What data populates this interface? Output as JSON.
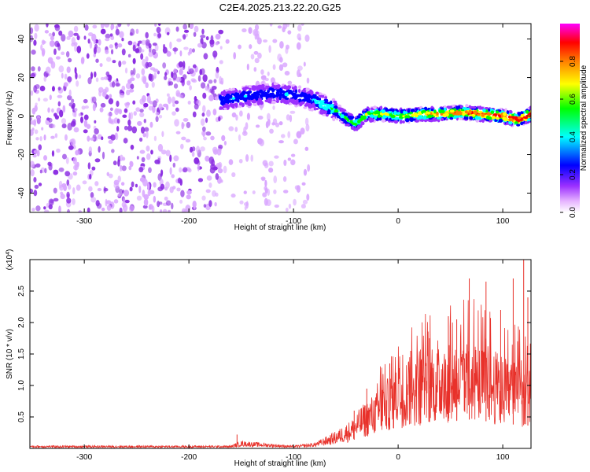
{
  "figure": {
    "title": "C2E4.2025.213.22.20.G25"
  },
  "chart_data": [
    {
      "type": "heatmap",
      "title": "C2E4.2025.213.22.20.G25",
      "xlabel": "Height of straight line (km)",
      "ylabel": "Frequency (Hz)",
      "xlim": [
        -352,
        127
      ],
      "ylim": [
        -50,
        48
      ],
      "x_ticks": [
        -300,
        -200,
        -100,
        0,
        100
      ],
      "y_ticks": [
        -40,
        -20,
        0,
        20,
        40
      ],
      "x_tick_labels": [
        "-300",
        "-200",
        "-100",
        "0",
        "100"
      ],
      "y_tick_labels": [
        "-40",
        "-20",
        "0",
        "20",
        "40"
      ],
      "colorbar": {
        "label": "Normalized spectral amplitude",
        "range": [
          0,
          1
        ],
        "ticks": [
          0.0,
          0.2,
          0.4,
          0.6,
          0.8
        ],
        "tick_labels": [
          "0.0",
          "0.2",
          "0.4",
          "0.6",
          "0.8"
        ],
        "colors": [
          "#ffffff",
          "#e6b3ff",
          "#9b30ff",
          "#0000ff",
          "#00ffff",
          "#00ff00",
          "#ffff00",
          "#ff8000",
          "#ff0000",
          "#ff00ff"
        ]
      },
      "ridge": {
        "x": [
          -170,
          -150,
          -120,
          -100,
          -80,
          -60,
          -48,
          -40,
          -30,
          -10,
          0,
          20,
          40,
          60,
          80,
          100,
          115,
          127
        ],
        "y": [
          8,
          10,
          12,
          11,
          8,
          3,
          -2,
          -4,
          1,
          1,
          0,
          1,
          1,
          2,
          1,
          0,
          -2,
          1
        ]
      },
      "grid": false,
      "legend": "none"
    },
    {
      "type": "line",
      "xlabel": "Height of straight line (km)",
      "ylabel": "SNR (10 * v/v)",
      "y_multiplier_label": "(x10",
      "y_multiplier_exp": "4",
      "y_multiplier_close": ")",
      "xlim": [
        -352,
        127
      ],
      "ylim": [
        0,
        3.0
      ],
      "x_ticks": [
        -300,
        -200,
        -100,
        0,
        100
      ],
      "y_ticks": [
        0.5,
        1.0,
        1.5,
        2.0,
        2.5
      ],
      "x_tick_labels": [
        "-300",
        "-200",
        "-100",
        "0",
        "100"
      ],
      "y_tick_labels": [
        "0.5",
        "1.0",
        "1.5",
        "2.0",
        "2.5"
      ],
      "series": [
        {
          "color": "#e8312a",
          "envelope_x": [
            -352,
            -160,
            -150,
            -100,
            -80,
            -60,
            -45,
            -35,
            -20,
            -10,
            0,
            15,
            30,
            50,
            70,
            90,
            110,
            127
          ],
          "envelope_y": [
            0.03,
            0.03,
            0.08,
            0.03,
            0.06,
            0.18,
            0.3,
            0.45,
            0.62,
            0.75,
            0.9,
            1.0,
            1.05,
            1.1,
            1.15,
            1.05,
            0.95,
            0.9
          ],
          "spikes_x": [
            -154,
            -42,
            -30,
            -8,
            12,
            30,
            48,
            56,
            68,
            84,
            98,
            110,
            120,
            124
          ],
          "spikes_y": [
            0.22,
            0.6,
            0.95,
            1.35,
            1.55,
            1.75,
            2.1,
            2.05,
            2.7,
            2.65,
            2.2,
            2.7,
            3.0,
            2.4
          ]
        }
      ],
      "grid": false,
      "legend": "none"
    }
  ]
}
